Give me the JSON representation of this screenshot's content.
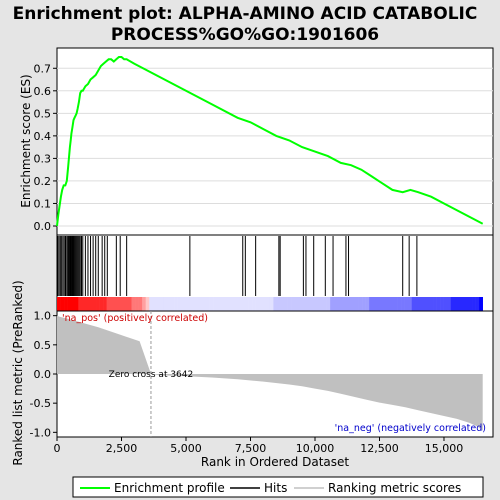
{
  "figure": {
    "title_line1": "Enrichment plot: ALPHA-AMINO ACID CATABOLIC",
    "title_line2": "PROCESS%GO%GO:1901606",
    "background": "#e5e5e5"
  },
  "chart_data": [
    {
      "type": "line",
      "panel": "enrichment-profile",
      "ylabel": "Enrichment score (ES)",
      "xlim": [
        0,
        16900
      ],
      "ylim": [
        -0.04,
        0.79
      ],
      "yticks": [
        0.0,
        0.1,
        0.2,
        0.3,
        0.4,
        0.5,
        0.6,
        0.7
      ],
      "ytick_labels": [
        "0.0",
        "0.1",
        "0.2",
        "0.3",
        "0.4",
        "0.5",
        "0.6",
        "0.7"
      ],
      "grid": true,
      "series": [
        {
          "name": "Enrichment profile",
          "color": "#00ff00",
          "x": [
            0,
            50,
            100,
            150,
            200,
            260,
            320,
            380,
            430,
            470,
            500,
            530,
            560,
            600,
            640,
            680,
            720,
            760,
            800,
            850,
            900,
            950,
            1000,
            1100,
            1200,
            1300,
            1400,
            1500,
            1600,
            1700,
            1800,
            1900,
            2000,
            2100,
            2200,
            2300,
            2400,
            2500,
            2600,
            2700,
            3000,
            3500,
            4000,
            5000,
            6000,
            7000,
            7500,
            8000,
            8500,
            9000,
            9500,
            10000,
            10500,
            11000,
            11400,
            11800,
            12200,
            12600,
            13000,
            13400,
            13700,
            14000,
            14500,
            15000,
            15500,
            16000,
            16500
          ],
          "y": [
            0.0,
            0.05,
            0.09,
            0.13,
            0.16,
            0.18,
            0.18,
            0.2,
            0.26,
            0.31,
            0.35,
            0.38,
            0.41,
            0.44,
            0.47,
            0.48,
            0.49,
            0.5,
            0.52,
            0.55,
            0.59,
            0.6,
            0.6,
            0.62,
            0.63,
            0.65,
            0.66,
            0.67,
            0.69,
            0.71,
            0.72,
            0.73,
            0.74,
            0.74,
            0.73,
            0.74,
            0.75,
            0.75,
            0.74,
            0.74,
            0.72,
            0.69,
            0.66,
            0.6,
            0.54,
            0.48,
            0.46,
            0.43,
            0.4,
            0.38,
            0.35,
            0.33,
            0.31,
            0.28,
            0.27,
            0.25,
            0.22,
            0.19,
            0.16,
            0.15,
            0.16,
            0.15,
            0.13,
            0.1,
            0.07,
            0.04,
            0.01
          ]
        }
      ]
    },
    {
      "type": "scatter",
      "panel": "hits",
      "xlim": [
        0,
        16900
      ],
      "series": [
        {
          "name": "Hits",
          "color": "#000000",
          "x": [
            30,
            80,
            130,
            180,
            230,
            280,
            330,
            380,
            420,
            450,
            480,
            510,
            540,
            570,
            600,
            630,
            660,
            700,
            740,
            780,
            820,
            860,
            900,
            950,
            1000,
            1100,
            1200,
            1300,
            1400,
            1500,
            1600,
            1750,
            1850,
            1950,
            2300,
            2450,
            2700,
            5150,
            7200,
            7300,
            7700,
            8600,
            8650,
            9550,
            9650,
            9950,
            10400,
            10700,
            11200,
            11300,
            13400,
            13650,
            13950
          ]
        }
      ]
    },
    {
      "type": "area",
      "panel": "ranked-metric",
      "xlabel": "Rank in Ordered Dataset",
      "ylabel": "Ranked list metric (PreRanked)",
      "xlim": [
        0,
        16900
      ],
      "ylim": [
        -1.08,
        1.08
      ],
      "yticks": [
        -1.0,
        -0.5,
        0.0,
        0.5,
        1.0
      ],
      "ytick_labels": [
        "-1.0",
        "-0.5",
        "0.0",
        "0.5",
        "1.0"
      ],
      "xticks": [
        0,
        2500,
        5000,
        7500,
        10000,
        12500,
        15000
      ],
      "xtick_labels": [
        "0",
        "2,500",
        "5,000",
        "7,500",
        "10,000",
        "12,500",
        "15,000"
      ],
      "zero_cross": 3642,
      "zero_cross_label": "Zero cross at 3642",
      "pos_label": "'na_pos' (positively correlated)",
      "neg_label": "'na_neg' (negatively correlated)",
      "series": [
        {
          "name": "Ranking metric scores",
          "color": "#c0c0c0",
          "x": [
            0,
            100,
            400,
            800,
            1200,
            1600,
            2000,
            2400,
            2800,
            3200,
            3642,
            4000,
            5000,
            6000,
            7000,
            8000,
            9000,
            9500,
            10000,
            10500,
            11000,
            11500,
            12000,
            12500,
            13000,
            13500,
            14000,
            14500,
            15000,
            15500,
            16000,
            16300,
            16500
          ],
          "y": [
            1.0,
            0.98,
            0.95,
            0.9,
            0.85,
            0.8,
            0.74,
            0.68,
            0.62,
            0.56,
            0.0,
            -0.02,
            -0.04,
            -0.06,
            -0.09,
            -0.13,
            -0.18,
            -0.21,
            -0.25,
            -0.29,
            -0.34,
            -0.39,
            -0.44,
            -0.49,
            -0.53,
            -0.57,
            -0.62,
            -0.67,
            -0.72,
            -0.77,
            -0.84,
            -0.9,
            -0.97
          ]
        }
      ]
    }
  ],
  "legend": {
    "items": [
      {
        "label": "Enrichment profile",
        "color": "#00ff00"
      },
      {
        "label": "Hits",
        "color": "#000000"
      },
      {
        "label": "Ranking metric scores",
        "color": "#c0c0c0"
      }
    ]
  }
}
